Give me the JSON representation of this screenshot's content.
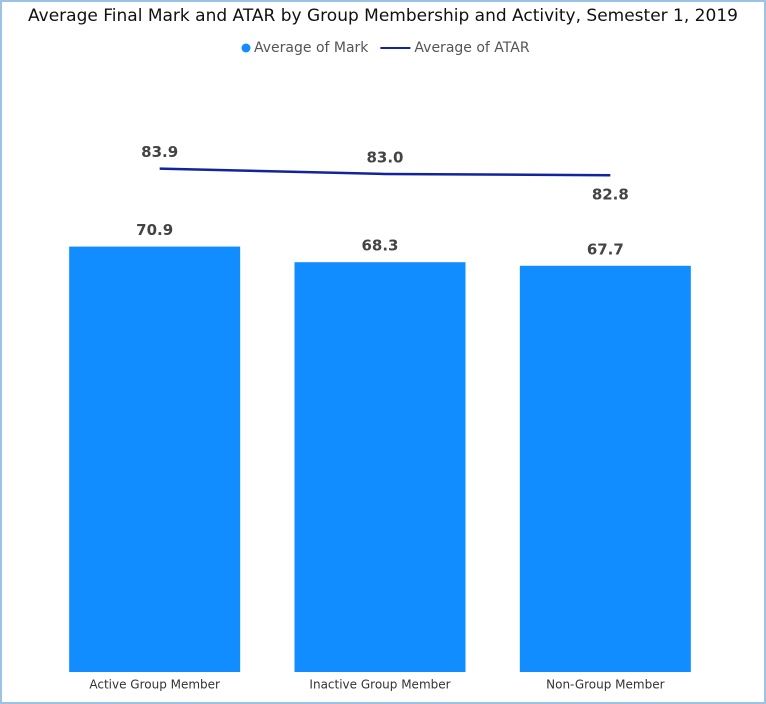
{
  "chart_data": {
    "type": "combo",
    "title": "Average Final Mark and ATAR by Group Membership and Activity, Semester 1, 2019",
    "categories": [
      "Active Group Member",
      "Inactive Group Member",
      "Non-Group Member"
    ],
    "series": [
      {
        "name": "Average of Mark",
        "type": "bar",
        "color": "#118DFF",
        "values": [
          70.9,
          68.3,
          67.7
        ],
        "value_labels": [
          "70.9",
          "68.3",
          "67.7"
        ]
      },
      {
        "name": "Average of ATAR",
        "type": "line",
        "color": "#12239E",
        "values": [
          83.9,
          83.0,
          82.8
        ],
        "value_labels": [
          "83.9",
          "83.0",
          "82.8"
        ]
      }
    ]
  }
}
